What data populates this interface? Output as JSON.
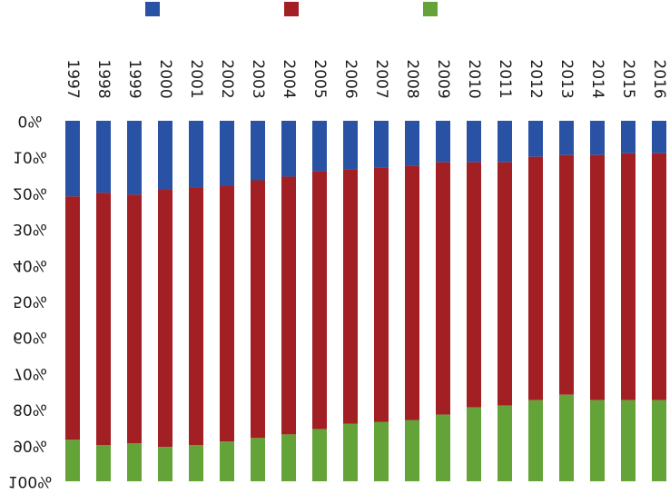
{
  "chart_data": {
    "type": "bar",
    "stacked": true,
    "orientation": "vertical",
    "note_render": "figure rendered upside-down (y axis increases downward, labels rotated 180deg)",
    "categories": [
      "1997",
      "1998",
      "1999",
      "2000",
      "2001",
      "2002",
      "2003",
      "2004",
      "2005",
      "2006",
      "2007",
      "2008",
      "2009",
      "2010",
      "2011",
      "2012",
      "2013",
      "2014",
      "2015",
      "2016"
    ],
    "series": [
      {
        "color": "#2a52a4",
        "values": [
          21,
          20,
          20.5,
          19,
          18.5,
          18,
          16.5,
          15.5,
          14,
          13.5,
          13,
          12.5,
          11.5,
          11.5,
          11.5,
          10,
          9.5,
          9.5,
          9,
          9
        ]
      },
      {
        "color": "#a21f24",
        "values": [
          67.5,
          70,
          69,
          71.5,
          71.5,
          71,
          71.5,
          71.5,
          71.5,
          70.5,
          70.5,
          70.5,
          70,
          68,
          67.5,
          67.5,
          66.5,
          68,
          68.5,
          68.5
        ]
      },
      {
        "color": "#63a337",
        "values": [
          11.5,
          10,
          10.5,
          9.5,
          10,
          11,
          12,
          13,
          14.5,
          16,
          16.5,
          17,
          18.5,
          20.5,
          21,
          22.5,
          24,
          22.5,
          22.5,
          22.5
        ]
      }
    ],
    "y_tick_labels": [
      "0%",
      "10%",
      "20%",
      "30%",
      "40%",
      "50%",
      "60%",
      "70%",
      "80%",
      "90%",
      "100%"
    ],
    "ylim": [
      0,
      100
    ],
    "legend": "top",
    "grid": false
  }
}
